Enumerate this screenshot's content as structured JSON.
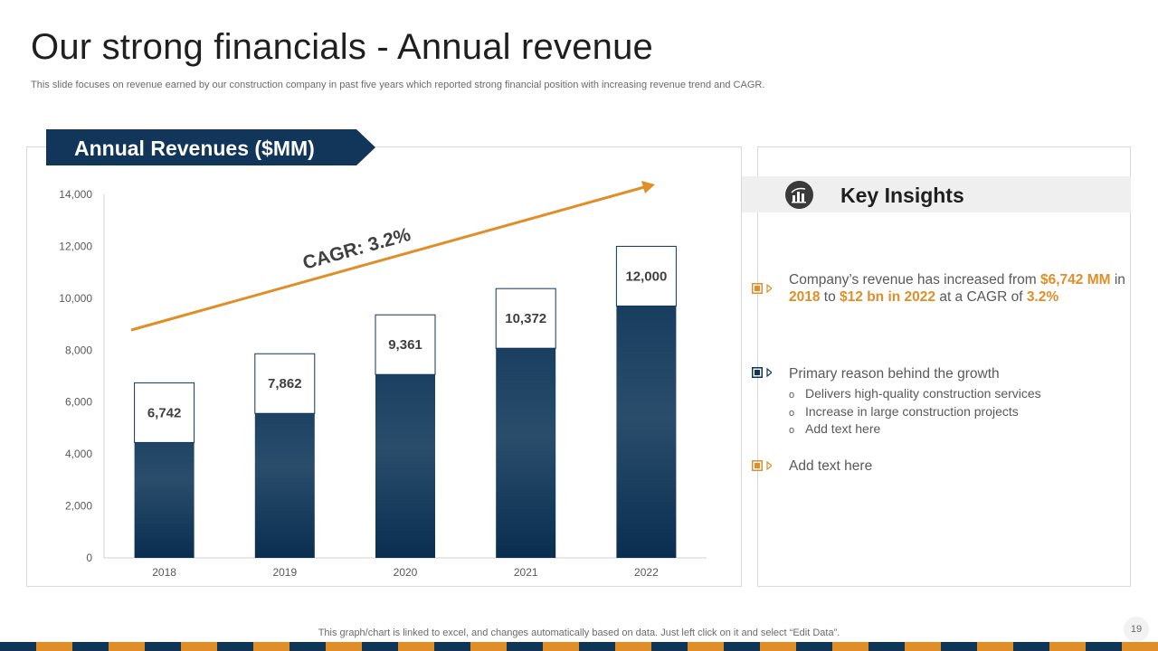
{
  "slide": {
    "title": "Our strong financials - Annual revenue",
    "subtitle": "This slide focuses on revenue earned by our construction company in past five years which reported strong financial position with increasing revenue trend and CAGR.",
    "footer_note": "This graph/chart is linked to excel,  and changes automatically based on data. Just left click on it and select “Edit Data”.",
    "page_number": "19"
  },
  "colors": {
    "navy": "#0f3557",
    "orange": "#e08e28",
    "text": "#595959"
  },
  "chart_data": {
    "type": "bar",
    "title": "Annual Revenues ($MM)",
    "categories": [
      "2018",
      "2019",
      "2020",
      "2021",
      "2022"
    ],
    "values": [
      6742,
      7862,
      9361,
      10372,
      12000
    ],
    "data_labels": [
      "6,742",
      "7,862",
      "9,361",
      "10,372",
      "12,000"
    ],
    "ylim": [
      0,
      14000
    ],
    "yticks": [
      0,
      2000,
      4000,
      6000,
      8000,
      10000,
      12000,
      14000
    ],
    "ytick_labels": [
      "0",
      "2,000",
      "4,000",
      "6,000",
      "8,000",
      "10,000",
      "12,000",
      "14,000"
    ],
    "xlabel": "",
    "ylabel": "",
    "grid": false,
    "annotation": {
      "text": "CAGR: 3.2%",
      "icon": "trend-arrow"
    }
  },
  "insights": {
    "title": "Key Insights",
    "icon": "chart-icon",
    "item1": {
      "marker_color": "#e08e28",
      "p1": "Company’s revenue has increased from ",
      "h1": "$6,742 MM",
      "p2": " in ",
      "h2": "2018",
      "p3": " to ",
      "h3": "$12 bn in 2022",
      "p4": " at a CAGR of ",
      "h4": "3.2%"
    },
    "item2": {
      "marker_color": "#0f3557",
      "text": "Primary reason behind the growth",
      "sub": [
        "Delivers high-quality construction services",
        "Increase in large construction projects",
        "Add text here"
      ]
    },
    "item3": {
      "marker_color": "#e08e28",
      "text": "Add text here"
    }
  }
}
